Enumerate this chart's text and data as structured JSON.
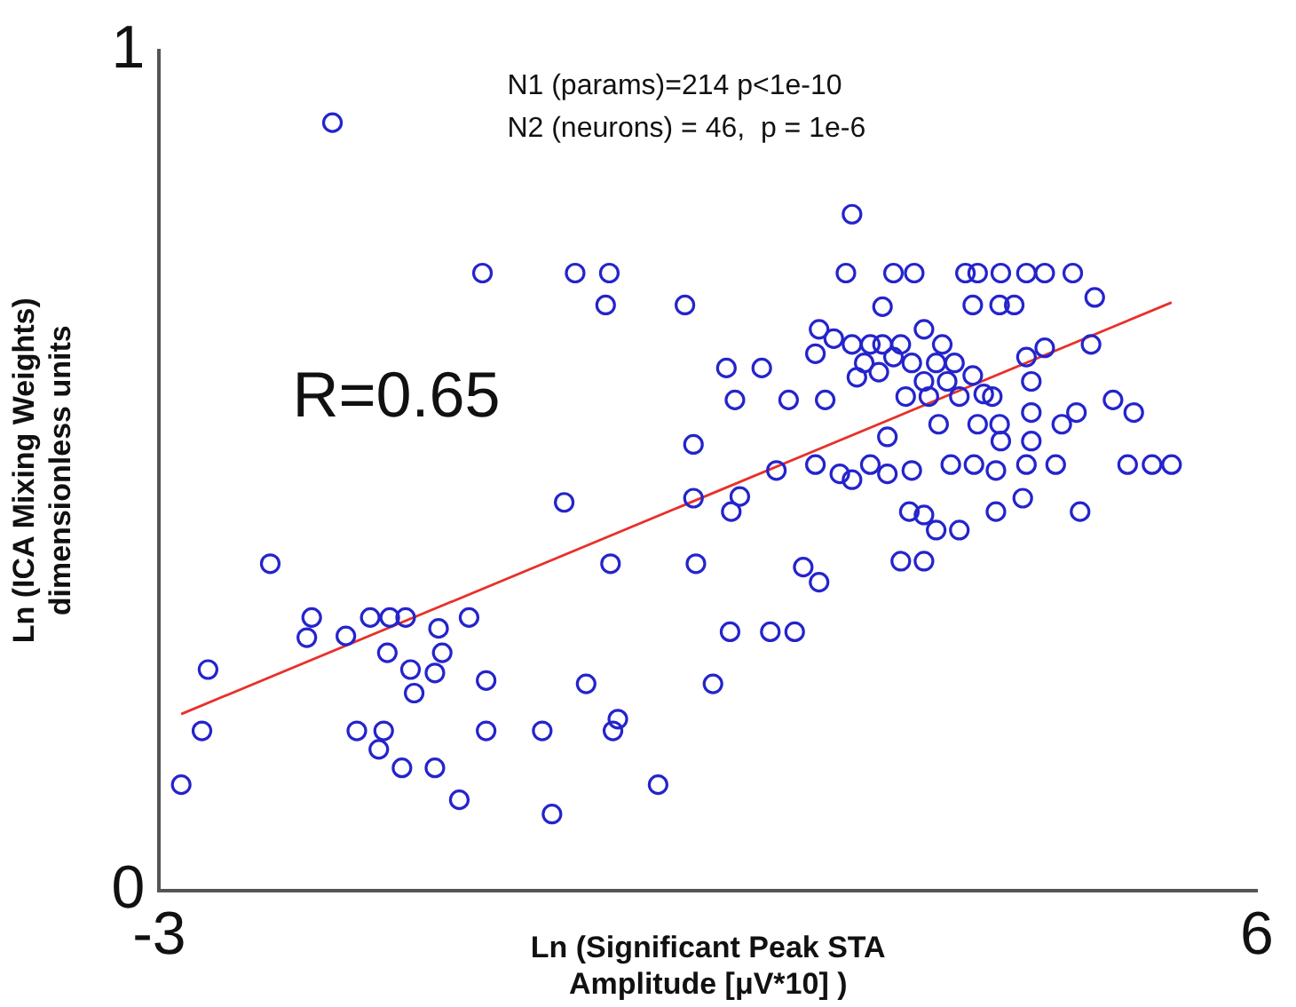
{
  "chart_data": {
    "type": "scatter",
    "xlabel": "Ln (Significant Peak STA\nAmplitude [μV*10] )",
    "ylabel": "Ln (ICA Mixing Weights)\ndimensionless units",
    "xlim": [
      -3,
      6
    ],
    "xticks": [
      -3,
      6
    ],
    "ylim": [
      0,
      1
    ],
    "yticks": [
      0,
      1
    ],
    "grid": false,
    "legend": false,
    "marker": "circle",
    "annotations": [
      "R=0.65",
      "N1 (params)=214 p<1e-10",
      "N2 (neurons) = 46,  p = 1e-6"
    ],
    "series": [
      {
        "type": "scatter",
        "color": "#2424cc",
        "x": [
          -0.35,
          0.41,
          0.69,
          0.66,
          1.31,
          1.38,
          0.32,
          1.38,
          0.7,
          1.4,
          -2.09,
          -1.75,
          -1.79,
          -1.47,
          -1.27,
          -1.11,
          -0.98,
          -0.46,
          -0.71,
          -1.13,
          -0.68,
          -0.94,
          -0.74,
          -0.91,
          -0.32,
          0.5,
          -2.6,
          -2.65,
          -1.38,
          -1.16,
          -0.32,
          0.14,
          0.72,
          0.76,
          -1.01,
          -0.74,
          -1.2,
          -2.82,
          -0.54,
          0.22,
          1.09,
          2.68,
          2.63,
          3.02,
          3.19,
          3.61,
          3.71,
          3.9,
          4.11,
          4.26,
          4.49,
          4.67,
          3.67,
          3.89,
          4.01,
          2.93,
          2.41,
          2.53,
          2.68,
          2.38,
          2.83,
          2.93,
          3.08,
          3.27,
          3.42,
          2.78,
          3.02,
          3.17,
          3.37,
          3.52,
          3.67,
          2.72,
          2.9,
          3.27,
          3.46,
          1.65,
          1.94,
          1.72,
          2.16,
          2.46,
          3.12,
          3.31,
          3.56,
          3.76,
          4.11,
          4.26,
          4.64,
          4.15,
          3.83,
          3.39,
          3.71,
          3.89,
          4.15,
          4.4,
          4.52,
          4.82,
          4.99,
          3.9,
          4.15,
          2.97,
          3.49,
          3.68,
          3.86,
          4.11,
          4.35,
          4.94,
          5.14,
          5.3,
          2.38,
          2.58,
          2.68,
          2.83,
          2.97,
          3.17,
          2.06,
          1.76,
          1.69,
          3.15,
          3.27,
          3.37,
          3.56,
          3.86,
          4.08,
          4.55,
          3.08,
          3.27,
          2.28,
          2.41,
          1.68,
          2.01,
          2.21,
          1.54,
          -1.58
        ],
        "values": [
          0.735,
          0.735,
          0.735,
          0.697,
          0.697,
          0.531,
          0.462,
          0.467,
          0.389,
          0.389,
          0.389,
          0.325,
          0.301,
          0.303,
          0.325,
          0.325,
          0.325,
          0.325,
          0.312,
          0.283,
          0.283,
          0.263,
          0.259,
          0.235,
          0.25,
          0.246,
          0.263,
          0.19,
          0.19,
          0.19,
          0.19,
          0.19,
          0.19,
          0.204,
          0.146,
          0.146,
          0.168,
          0.126,
          0.108,
          0.091,
          0.126,
          0.805,
          0.735,
          0.735,
          0.735,
          0.735,
          0.735,
          0.735,
          0.735,
          0.735,
          0.735,
          0.706,
          0.697,
          0.697,
          0.697,
          0.695,
          0.668,
          0.657,
          0.65,
          0.639,
          0.65,
          0.65,
          0.65,
          0.668,
          0.65,
          0.628,
          0.635,
          0.628,
          0.628,
          0.628,
          0.613,
          0.611,
          0.617,
          0.606,
          0.606,
          0.622,
          0.622,
          0.584,
          0.584,
          0.584,
          0.588,
          0.588,
          0.588,
          0.591,
          0.635,
          0.646,
          0.65,
          0.606,
          0.588,
          0.555,
          0.555,
          0.555,
          0.569,
          0.555,
          0.569,
          0.584,
          0.569,
          0.535,
          0.535,
          0.54,
          0.507,
          0.507,
          0.5,
          0.507,
          0.507,
          0.507,
          0.507,
          0.507,
          0.507,
          0.496,
          0.489,
          0.507,
          0.496,
          0.5,
          0.5,
          0.469,
          0.451,
          0.451,
          0.447,
          0.429,
          0.429,
          0.451,
          0.467,
          0.451,
          0.392,
          0.392,
          0.385,
          0.367,
          0.308,
          0.308,
          0.308,
          0.246,
          0.914
        ]
      },
      {
        "type": "line",
        "color": "#e8302a",
        "marker": "none",
        "x": [
          -2.82,
          5.3
        ],
        "values": [
          0.21,
          0.7
        ]
      }
    ]
  }
}
